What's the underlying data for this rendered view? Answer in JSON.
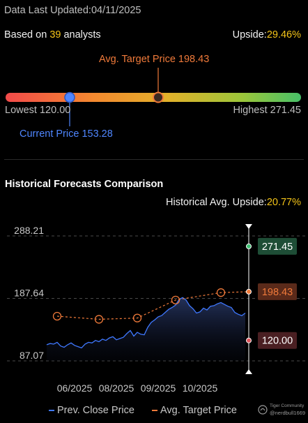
{
  "header": {
    "updated_label": "Data Last Updated:",
    "updated_value": "04/11/2025",
    "based_on_prefix": "Based on ",
    "analyst_count": "39",
    "based_on_suffix": " analysts",
    "upside_label": "Upside:",
    "upside_value": "29.46%"
  },
  "range": {
    "avg_target_label": "Avg. Target Price 198.43",
    "lowest_label": "Lowest 120.00",
    "highest_label": "Highest 271.45",
    "current_label": "Current Price 153.28",
    "low": 120.0,
    "high": 271.45,
    "current": 153.28,
    "avg": 198.43
  },
  "section": {
    "title": "Historical Forecasts Comparison",
    "hist_upside_label": "Historical Avg. Upside:",
    "hist_upside_value": "20.77%"
  },
  "legend": {
    "close_label": "Prev. Close Price",
    "target_label": "Avg. Target Price"
  },
  "watermark": {
    "brand": "Tiger Community",
    "user": "@nerdbull1669"
  },
  "colors": {
    "close_line": "#3f78ff",
    "target_line": "#f07a3a",
    "highest_badge": "#1e4d36",
    "target_badge": "#5a2a1a",
    "lowest_badge": "#4a1f22"
  },
  "chart_data": {
    "type": "line",
    "ylim": [
      87.07,
      288.21
    ],
    "y_ticks": [
      "288.21",
      "187.64",
      "87.07"
    ],
    "x_ticks": [
      {
        "label": "06/2025",
        "x": 40
      },
      {
        "label": "08/2025",
        "x": 100
      },
      {
        "label": "09/2025",
        "x": 160
      },
      {
        "label": "10/2025",
        "x": 220
      }
    ],
    "x_range": [
      0,
      290
    ],
    "series": [
      {
        "name": "Prev. Close Price",
        "x": [
          0,
          5,
          10,
          15,
          20,
          25,
          30,
          35,
          40,
          45,
          50,
          55,
          60,
          65,
          70,
          75,
          80,
          85,
          90,
          95,
          100,
          105,
          110,
          115,
          120,
          125,
          130,
          135,
          140,
          145,
          150,
          155,
          160,
          165,
          170,
          175,
          180,
          185,
          190,
          195,
          200,
          205,
          210,
          215,
          220,
          225,
          230,
          235,
          240,
          245,
          250,
          255,
          260,
          265,
          270,
          275,
          280,
          285
        ],
        "values": [
          113,
          115,
          114,
          117,
          111,
          109,
          113,
          116,
          112,
          110,
          108,
          114,
          117,
          116,
          120,
          118,
          122,
          120,
          124,
          126,
          121,
          123,
          125,
          131,
          136,
          127,
          133,
          130,
          129,
          141,
          149,
          153,
          158,
          160,
          165,
          170,
          173,
          177,
          186,
          189,
          185,
          176,
          171,
          164,
          166,
          172,
          169,
          175,
          176,
          179,
          181,
          178,
          175,
          173,
          165,
          162,
          160,
          164
        ]
      },
      {
        "name": "Avg. Target Price",
        "x": [
          15,
          75,
          130,
          185,
          250,
          290
        ],
        "values": [
          159,
          154,
          156,
          185,
          197,
          198.43
        ]
      }
    ],
    "markers": [
      {
        "label": "271.45",
        "value": 271.45
      },
      {
        "label": "198.43",
        "value": 198.43
      },
      {
        "label": "120.00",
        "value": 120.0
      }
    ]
  }
}
